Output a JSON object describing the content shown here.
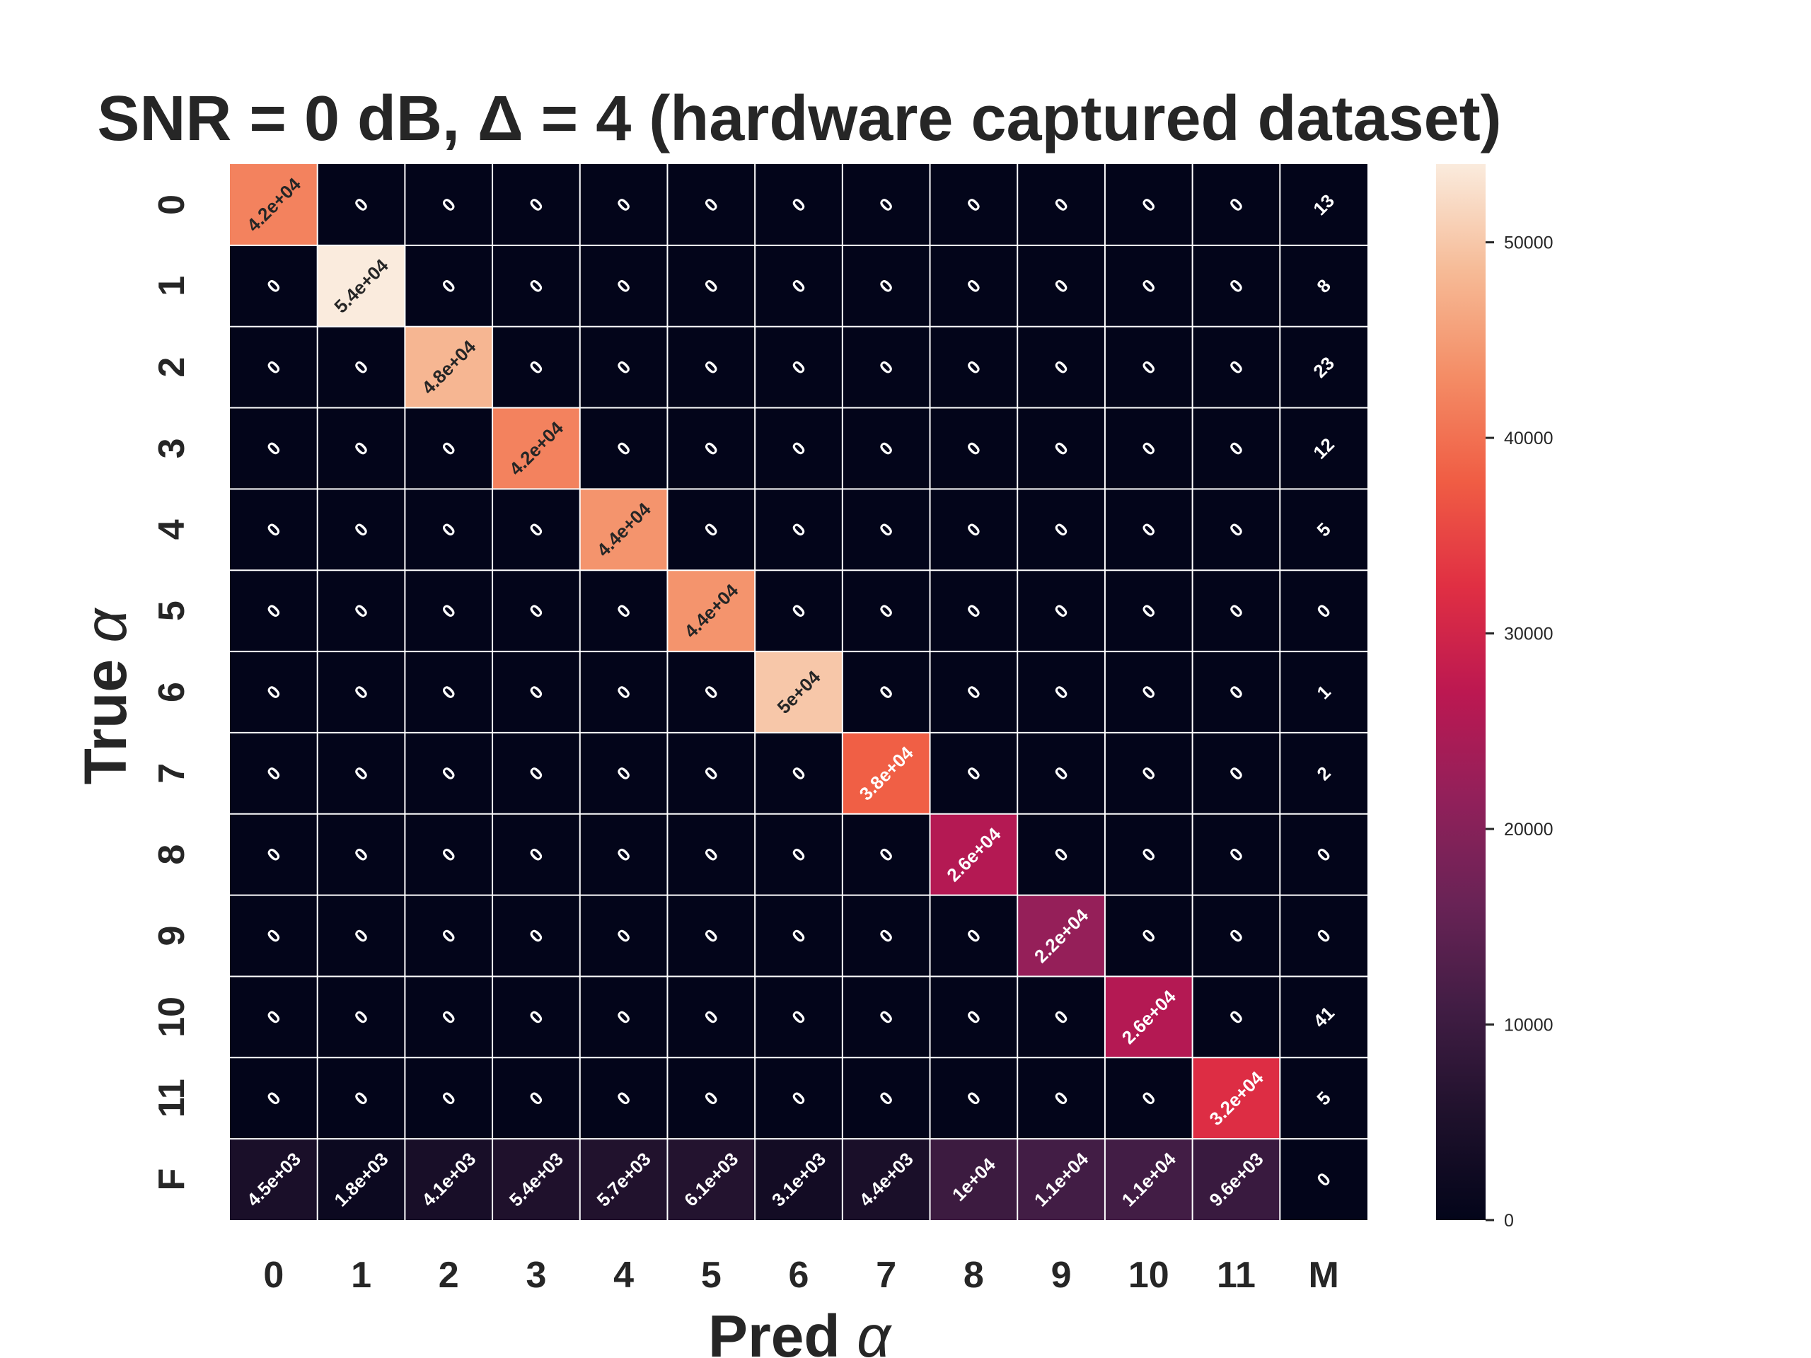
{
  "chart_data": {
    "type": "heatmap",
    "title": "SNR = 0 dB, Δ = 4 (hardware captured dataset)",
    "xlabel_text": "Pred ",
    "xlabel_symbol": "α",
    "ylabel_text": "True ",
    "ylabel_symbol": "α",
    "x_categories": [
      "0",
      "1",
      "2",
      "3",
      "4",
      "5",
      "6",
      "7",
      "8",
      "9",
      "10",
      "11",
      "M"
    ],
    "y_categories": [
      "0",
      "1",
      "2",
      "3",
      "4",
      "5",
      "6",
      "7",
      "8",
      "9",
      "10",
      "11",
      "F"
    ],
    "values": [
      [
        42000,
        0,
        0,
        0,
        0,
        0,
        0,
        0,
        0,
        0,
        0,
        0,
        13
      ],
      [
        0,
        54000,
        0,
        0,
        0,
        0,
        0,
        0,
        0,
        0,
        0,
        0,
        8
      ],
      [
        0,
        0,
        48000,
        0,
        0,
        0,
        0,
        0,
        0,
        0,
        0,
        0,
        23
      ],
      [
        0,
        0,
        0,
        42000,
        0,
        0,
        0,
        0,
        0,
        0,
        0,
        0,
        12
      ],
      [
        0,
        0,
        0,
        0,
        44000,
        0,
        0,
        0,
        0,
        0,
        0,
        0,
        5
      ],
      [
        0,
        0,
        0,
        0,
        0,
        44000,
        0,
        0,
        0,
        0,
        0,
        0,
        0
      ],
      [
        0,
        0,
        0,
        0,
        0,
        0,
        50000,
        0,
        0,
        0,
        0,
        0,
        1
      ],
      [
        0,
        0,
        0,
        0,
        0,
        0,
        0,
        38000,
        0,
        0,
        0,
        0,
        2
      ],
      [
        0,
        0,
        0,
        0,
        0,
        0,
        0,
        0,
        26000,
        0,
        0,
        0,
        0
      ],
      [
        0,
        0,
        0,
        0,
        0,
        0,
        0,
        0,
        0,
        22000,
        0,
        0,
        0
      ],
      [
        0,
        0,
        0,
        0,
        0,
        0,
        0,
        0,
        0,
        0,
        26000,
        0,
        41
      ],
      [
        0,
        0,
        0,
        0,
        0,
        0,
        0,
        0,
        0,
        0,
        0,
        32000,
        5
      ],
      [
        4500,
        1800,
        4100,
        5400,
        5700,
        6100,
        3100,
        4400,
        10000,
        11000,
        11000,
        9600,
        0
      ]
    ],
    "labels": [
      [
        "4.2e+04",
        "0",
        "0",
        "0",
        "0",
        "0",
        "0",
        "0",
        "0",
        "0",
        "0",
        "0",
        "13"
      ],
      [
        "0",
        "5.4e+04",
        "0",
        "0",
        "0",
        "0",
        "0",
        "0",
        "0",
        "0",
        "0",
        "0",
        "8"
      ],
      [
        "0",
        "0",
        "4.8e+04",
        "0",
        "0",
        "0",
        "0",
        "0",
        "0",
        "0",
        "0",
        "0",
        "23"
      ],
      [
        "0",
        "0",
        "0",
        "4.2e+04",
        "0",
        "0",
        "0",
        "0",
        "0",
        "0",
        "0",
        "0",
        "12"
      ],
      [
        "0",
        "0",
        "0",
        "0",
        "4.4e+04",
        "0",
        "0",
        "0",
        "0",
        "0",
        "0",
        "0",
        "5"
      ],
      [
        "0",
        "0",
        "0",
        "0",
        "0",
        "4.4e+04",
        "0",
        "0",
        "0",
        "0",
        "0",
        "0",
        "0"
      ],
      [
        "0",
        "0",
        "0",
        "0",
        "0",
        "0",
        "5e+04",
        "0",
        "0",
        "0",
        "0",
        "0",
        "1"
      ],
      [
        "0",
        "0",
        "0",
        "0",
        "0",
        "0",
        "0",
        "3.8e+04",
        "0",
        "0",
        "0",
        "0",
        "2"
      ],
      [
        "0",
        "0",
        "0",
        "0",
        "0",
        "0",
        "0",
        "0",
        "2.6e+04",
        "0",
        "0",
        "0",
        "0"
      ],
      [
        "0",
        "0",
        "0",
        "0",
        "0",
        "0",
        "0",
        "0",
        "0",
        "2.2e+04",
        "0",
        "0",
        "0"
      ],
      [
        "0",
        "0",
        "0",
        "0",
        "0",
        "0",
        "0",
        "0",
        "0",
        "0",
        "2.6e+04",
        "0",
        "41"
      ],
      [
        "0",
        "0",
        "0",
        "0",
        "0",
        "0",
        "0",
        "0",
        "0",
        "0",
        "0",
        "3.2e+04",
        "5"
      ],
      [
        "4.5e+03",
        "1.8e+03",
        "4.1e+03",
        "5.4e+03",
        "5.7e+03",
        "6.1e+03",
        "3.1e+03",
        "4.4e+03",
        "1e+04",
        "1.1e+04",
        "1.1e+04",
        "9.6e+03",
        "0"
      ]
    ],
    "colorbar": {
      "min": 0,
      "max": 54000,
      "ticks": [
        0,
        10000,
        20000,
        30000,
        40000,
        50000
      ],
      "tick_labels": [
        "0",
        "10000",
        "20000",
        "30000",
        "40000",
        "50000"
      ],
      "colormap": "rocket"
    },
    "grid_line_color": "#ffffff",
    "light_label_color": "#ffffff",
    "dark_label_color": "#262626"
  }
}
